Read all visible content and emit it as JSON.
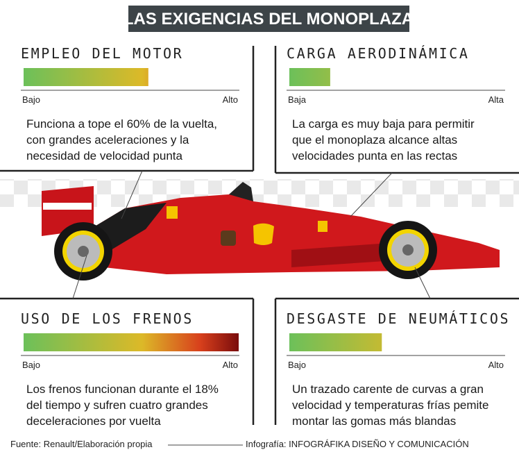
{
  "title": "LAS EXIGENCIAS DEL MONOPLAZA",
  "sections": [
    {
      "heading": "EMPLEO DEL MOTOR",
      "level": 58,
      "low": "Bajo",
      "high": "Alto",
      "text": [
        "Funciona a tope el 60% de la vuelta,",
        "con grandes aceleraciones y la",
        "necesidad de velocidad punta"
      ]
    },
    {
      "heading": "CARGA AERODINÁMICA",
      "level": 19,
      "low": "Baja",
      "high": "Alta",
      "text": [
        "La carga es muy baja para permitir",
        "que el monoplaza alcance altas",
        "velocidades punta en las rectas"
      ]
    },
    {
      "heading": "USO DE LOS FRENOS",
      "level": 100,
      "low": "Bajo",
      "high": "Alto",
      "text": [
        "Los frenos funcionan durante el 18%",
        "del tiempo y sufren cuatro grandes",
        "deceleraciones por vuelta"
      ]
    },
    {
      "heading": "DESGASTE DE NEUMÁTICOS",
      "level": 43,
      "low": "Bajo",
      "high": "Alto",
      "text": [
        "Un trazado carente de curvas a gran",
        "velocidad y temperaturas frías pemite",
        "montar las gomas más blandas"
      ]
    }
  ],
  "footer": {
    "source": "Fuente: Renault/Elaboración propia",
    "credit": "Infografía: INFOGRÁFIKA DISEÑO Y COMUNICACIÓN"
  }
}
